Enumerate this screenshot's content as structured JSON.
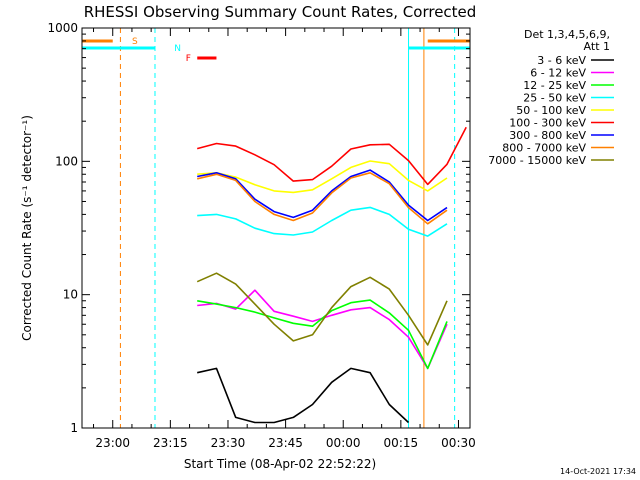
{
  "chart_data": {
    "type": "line",
    "title": "RHESSI Observing Summary Count Rates, Corrected",
    "xlabel": "Start Time (08-Apr-02 22:52:22)",
    "ylabel": "Corrected Count Rate (s⁻¹ detector⁻¹)",
    "yscale": "log",
    "ylim": [
      1,
      1000
    ],
    "xlim": [
      "22:52",
      "00:33"
    ],
    "x_tick_labels": [
      "23:00",
      "23:15",
      "23:30",
      "23:45",
      "00:00",
      "00:15",
      "00:30"
    ],
    "y_tick_labels": [
      "1",
      "10",
      "100",
      "1000"
    ],
    "legend_header": [
      "Det 1,3,4,5,6,9,",
      "Att 1"
    ],
    "legend_position": "right",
    "timestamp": "14-Oct-2021 17:34",
    "x_sample_minutes": [
      0,
      5,
      10,
      15,
      20,
      25,
      30,
      35,
      40,
      45,
      50,
      55,
      60,
      65,
      70,
      75,
      80,
      85,
      90,
      95,
      100
    ],
    "series": [
      {
        "name": "3 - 6 keV",
        "color": "#000000",
        "values": [
          null,
          null,
          null,
          null,
          null,
          null,
          2.6,
          2.8,
          1.2,
          1.1,
          1.1,
          1.2,
          1.5,
          2.2,
          2.8,
          2.6,
          1.5,
          1.1,
          null,
          null,
          null
        ]
      },
      {
        "name": "6 - 12 keV",
        "color": "#ff00ff",
        "values": [
          null,
          null,
          null,
          null,
          null,
          null,
          8.3,
          8.6,
          7.8,
          10.8,
          7.5,
          6.9,
          6.3,
          7.0,
          7.7,
          8.0,
          6.5,
          4.8,
          2.8,
          6.0,
          null
        ]
      },
      {
        "name": "12 - 25 keV",
        "color": "#00ff00",
        "values": [
          null,
          null,
          null,
          null,
          null,
          null,
          9.0,
          8.5,
          8.0,
          7.4,
          6.7,
          6.1,
          5.8,
          7.6,
          8.7,
          9.1,
          7.3,
          5.4,
          2.8,
          6.3,
          null
        ]
      },
      {
        "name": "25 - 50 keV",
        "color": "#00ffff",
        "values": [
          null,
          null,
          null,
          null,
          null,
          null,
          39.2,
          40.0,
          37.0,
          31.5,
          28.7,
          28.0,
          29.5,
          36.0,
          43.0,
          45.1,
          40.0,
          31.0,
          27.5,
          34.0,
          null
        ]
      },
      {
        "name": "50 - 100 keV",
        "color": "#ffff00",
        "values": [
          null,
          null,
          null,
          null,
          null,
          null,
          80.1,
          82.0,
          76.2,
          66.8,
          60.0,
          58.5,
          61.2,
          74.0,
          90.0,
          100.5,
          96.0,
          72.0,
          60.0,
          75.0,
          null
        ]
      },
      {
        "name": "100 - 300 keV",
        "color": "#ff0000",
        "values": [
          null,
          null,
          null,
          null,
          null,
          null,
          124.5,
          136.0,
          130.0,
          112.0,
          94.3,
          71.1,
          72.9,
          92.0,
          123.7,
          133.0,
          134.2,
          101.2,
          67.2,
          95.0,
          180.0
        ]
      },
      {
        "name": "300 - 800 keV",
        "color": "#0000ff",
        "values": [
          null,
          null,
          null,
          null,
          null,
          null,
          77.0,
          82.0,
          74.0,
          52.0,
          42.0,
          38.0,
          43.0,
          60.0,
          77.0,
          86.0,
          70.0,
          47.0,
          36.0,
          45.0,
          null
        ]
      },
      {
        "name": "800 - 7000 keV",
        "color": "#ff8000",
        "values": [
          null,
          null,
          null,
          null,
          null,
          null,
          74.0,
          80.0,
          72.0,
          50.0,
          40.0,
          36.0,
          41.0,
          58.0,
          75.0,
          82.0,
          68.0,
          45.0,
          34.0,
          43.0,
          null
        ]
      },
      {
        "name": "7000 - 15000 keV",
        "color": "#808000",
        "values": [
          null,
          null,
          null,
          null,
          null,
          null,
          12.5,
          14.5,
          12.0,
          8.5,
          6.0,
          4.5,
          5.0,
          8.0,
          11.5,
          13.5,
          11.0,
          7.0,
          4.2,
          9.0,
          null
        ]
      }
    ],
    "flags": [
      {
        "label": "S",
        "color": "#ff8000",
        "segments": [
          [
            "22:52",
            "23:00"
          ],
          [
            "00:22",
            "00:33"
          ]
        ]
      },
      {
        "label": "N",
        "color": "#00ffff",
        "segments": [
          [
            "22:52",
            "23:11"
          ],
          [
            "00:17",
            "00:33"
          ]
        ]
      },
      {
        "label": "F",
        "color": "#ff0000",
        "segments": [
          [
            "23:22",
            "23:27"
          ]
        ]
      }
    ],
    "vertical_markers": [
      {
        "time": "23:02",
        "color": "#ff8000",
        "style": "dashed"
      },
      {
        "time": "23:11",
        "color": "#00ffff",
        "style": "dashed"
      },
      {
        "time": "00:17",
        "color": "#00ffff",
        "style": "solid"
      },
      {
        "time": "00:21",
        "color": "#ff8000",
        "style": "solid"
      },
      {
        "time": "00:29",
        "color": "#00ffff",
        "style": "dashed"
      }
    ],
    "grid": false
  }
}
